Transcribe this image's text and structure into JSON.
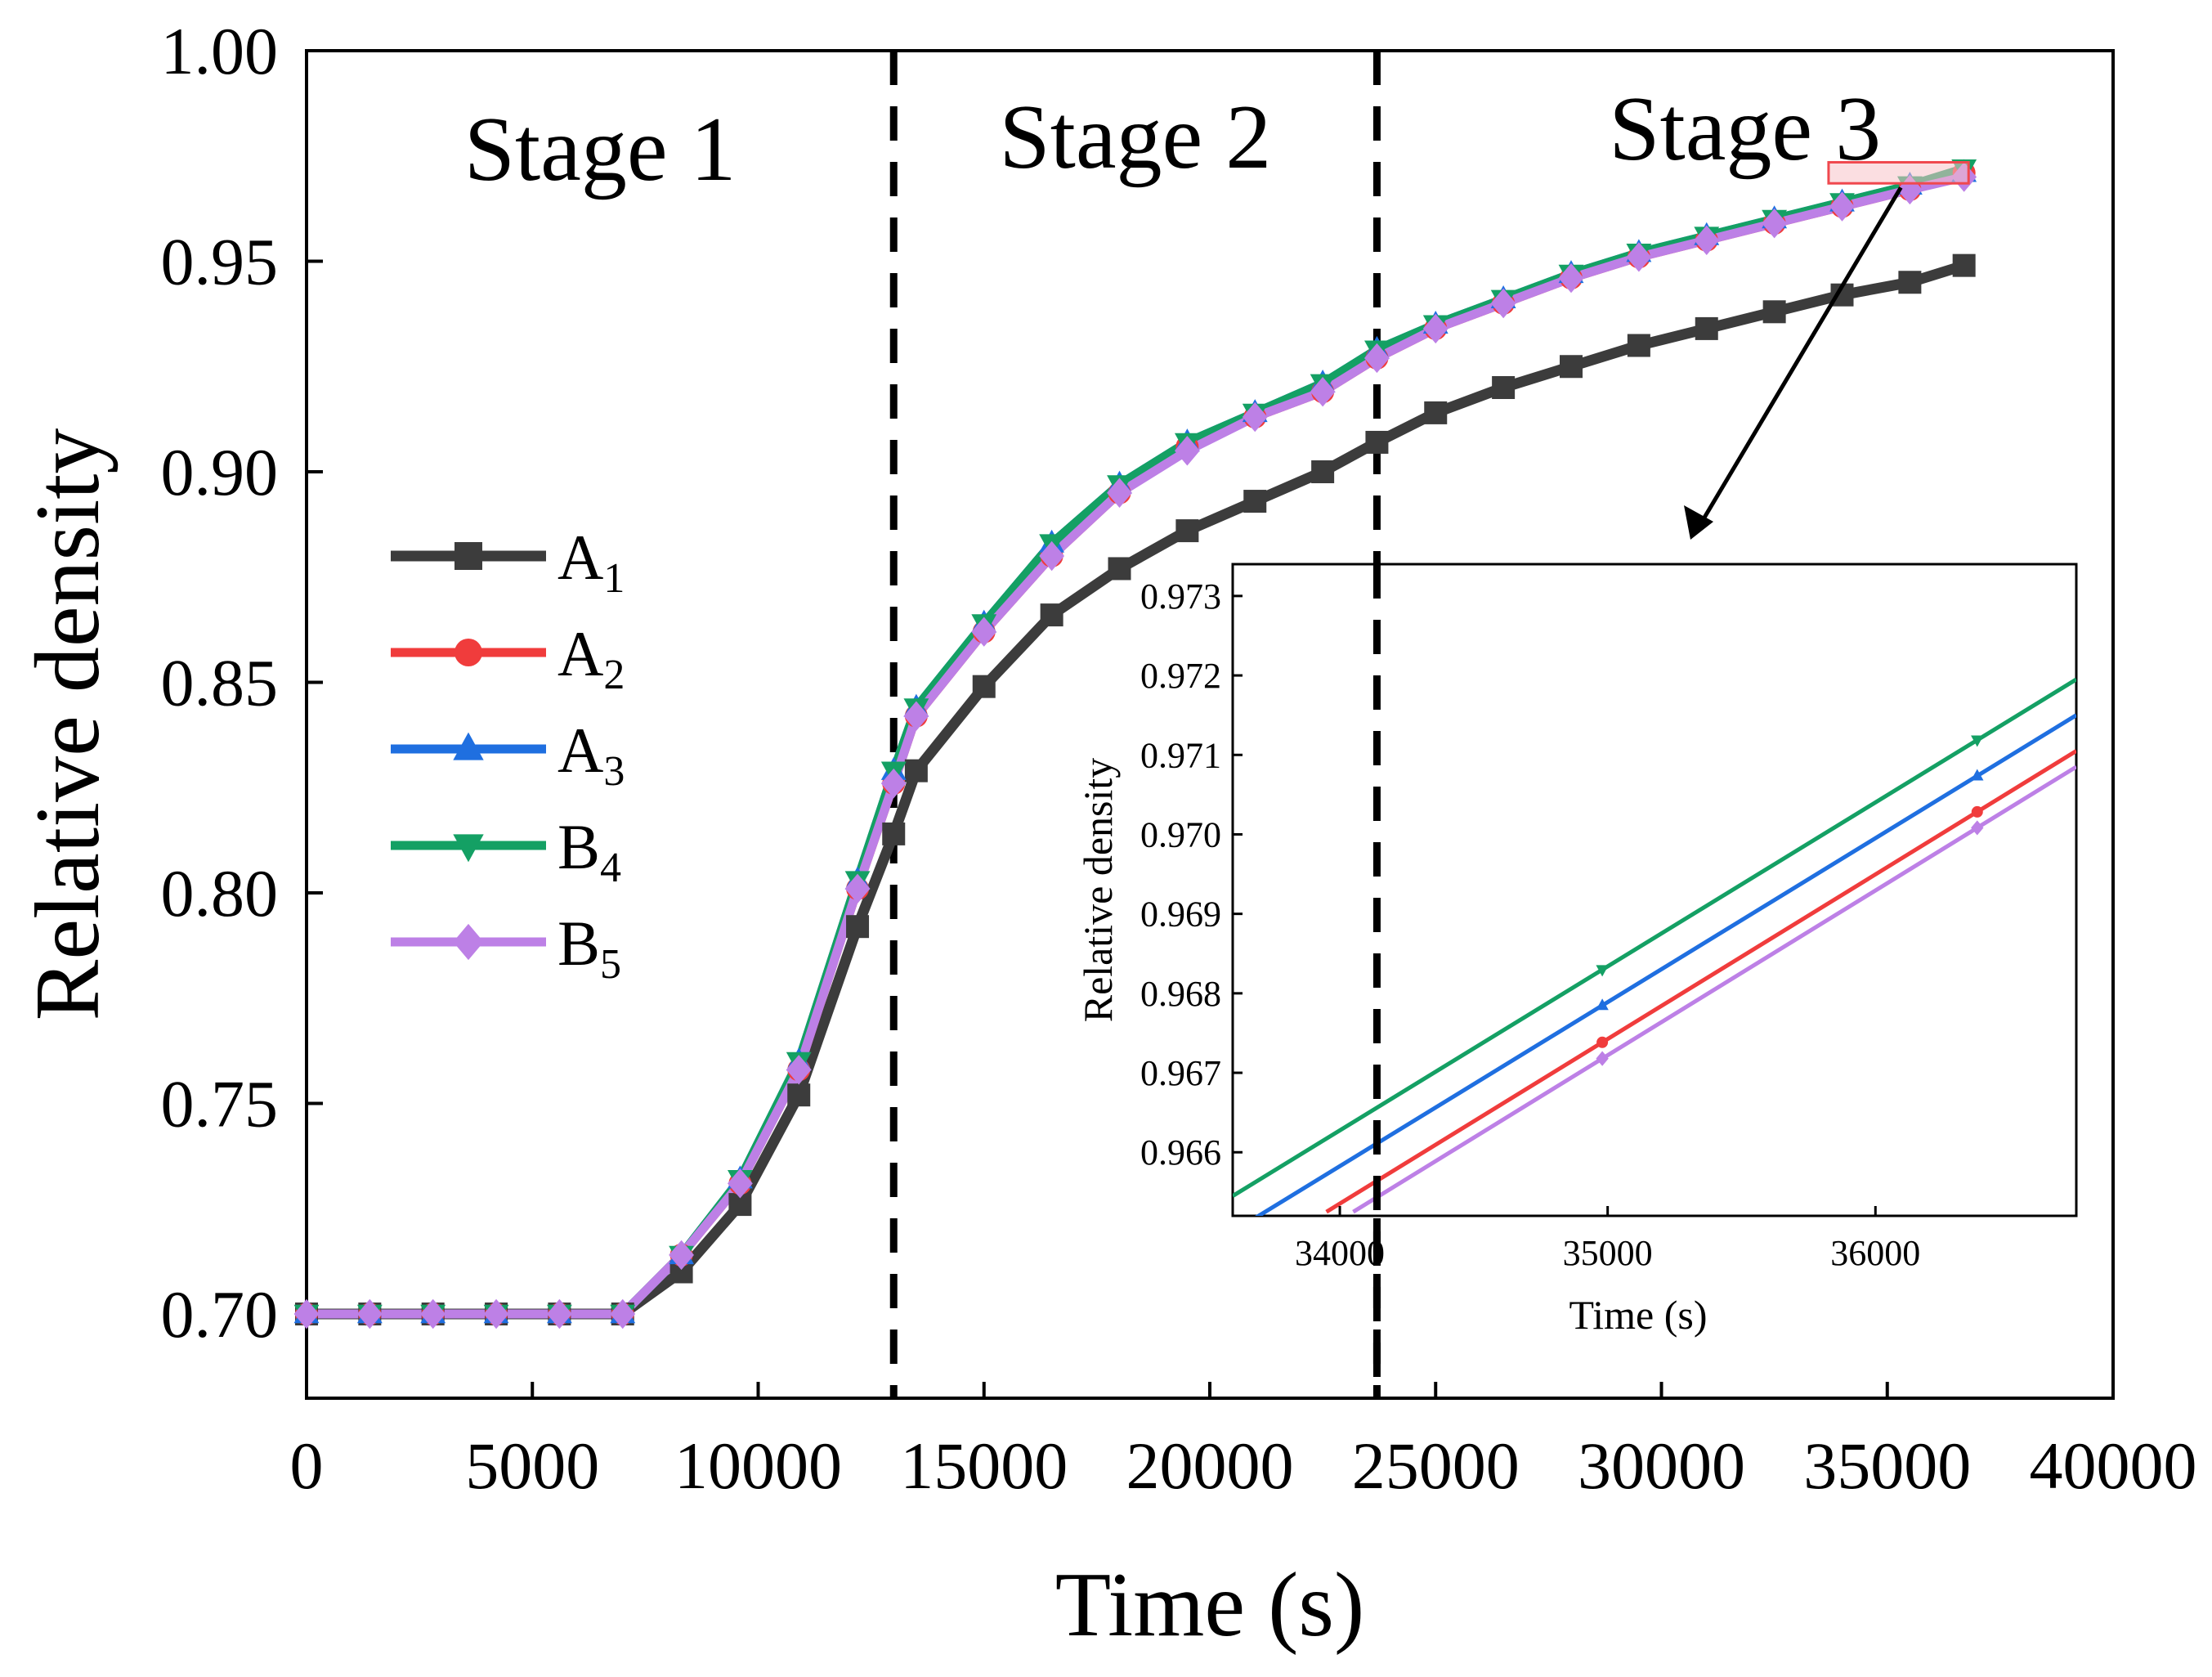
{
  "colors": {
    "A1": "#3c3c3c",
    "A2": "#f03c3c",
    "A3": "#1f6fe0",
    "B4": "#14a064",
    "B5": "#bd80e6",
    "highlight_fill": "#f7c2c8",
    "highlight_stroke": "#f0484e"
  },
  "chart_data": [
    {
      "type": "line",
      "xlabel": "Time (s)",
      "ylabel": "Relative density",
      "xlim": [
        0,
        40000
      ],
      "ylim": [
        0.68,
        1.0
      ],
      "xticks": [
        0,
        5000,
        10000,
        15000,
        20000,
        25000,
        30000,
        35000,
        40000
      ],
      "xtick_labels": [
        "0",
        "5000",
        "10000",
        "15000",
        "20000",
        "25000",
        "30000",
        "35000",
        "40000"
      ],
      "yticks": [
        0.7,
        0.75,
        0.8,
        0.85,
        0.9,
        0.95,
        1.0
      ],
      "ytick_labels": [
        "0.70",
        "0.75",
        "0.80",
        "0.85",
        "0.90",
        "0.95",
        "1.00"
      ],
      "stage_dividers": [
        13000,
        23700
      ],
      "stages": [
        "Stage 1",
        "Stage 2",
        "Stage 3"
      ],
      "legend": [
        {
          "key": "A1",
          "base": "A",
          "sub": "1",
          "marker": "square"
        },
        {
          "key": "A2",
          "base": "A",
          "sub": "2",
          "marker": "circle"
        },
        {
          "key": "A3",
          "base": "A",
          "sub": "3",
          "marker": "triangle-up"
        },
        {
          "key": "B4",
          "base": "B",
          "sub": "4",
          "marker": "triangle-down"
        },
        {
          "key": "B5",
          "base": "B",
          "sub": "5",
          "marker": "diamond"
        }
      ],
      "x": [
        0,
        1400,
        2800,
        4200,
        5600,
        7000,
        8300,
        9600,
        10900,
        12200,
        13000,
        13500,
        15000,
        16500,
        18000,
        19500,
        21000,
        22500,
        23700,
        25000,
        26500,
        28000,
        29500,
        31000,
        32500,
        34000,
        35500,
        36700
      ],
      "series": [
        {
          "name": "A1",
          "values": [
            0.7,
            0.7,
            0.7,
            0.7,
            0.7,
            0.7,
            0.71,
            0.726,
            0.752,
            0.792,
            0.814,
            0.829,
            0.849,
            0.866,
            0.877,
            0.886,
            0.893,
            0.9,
            0.907,
            0.914,
            0.92,
            0.925,
            0.93,
            0.934,
            0.938,
            0.942,
            0.945,
            0.949
          ]
        },
        {
          "name": "A2",
          "values": [
            0.7,
            0.7,
            0.7,
            0.7,
            0.7,
            0.7,
            0.714,
            0.731,
            0.758,
            0.801,
            0.826,
            0.842,
            0.862,
            0.88,
            0.895,
            0.906,
            0.913,
            0.919,
            0.927,
            0.934,
            0.94,
            0.946,
            0.951,
            0.955,
            0.959,
            0.963,
            0.967,
            0.971
          ]
        },
        {
          "name": "A3",
          "values": [
            0.7,
            0.7,
            0.7,
            0.7,
            0.7,
            0.7,
            0.714,
            0.732,
            0.76,
            0.803,
            0.829,
            0.844,
            0.864,
            0.883,
            0.897,
            0.907,
            0.914,
            0.921,
            0.929,
            0.935,
            0.941,
            0.947,
            0.952,
            0.956,
            0.96,
            0.964,
            0.968,
            0.971
          ]
        },
        {
          "name": "B4",
          "values": [
            0.7,
            0.7,
            0.7,
            0.7,
            0.7,
            0.7,
            0.714,
            0.732,
            0.76,
            0.803,
            0.829,
            0.844,
            0.864,
            0.883,
            0.897,
            0.907,
            0.914,
            0.921,
            0.929,
            0.935,
            0.941,
            0.947,
            0.952,
            0.956,
            0.96,
            0.964,
            0.968,
            0.972
          ]
        },
        {
          "name": "B5",
          "values": [
            0.7,
            0.7,
            0.7,
            0.7,
            0.7,
            0.7,
            0.714,
            0.731,
            0.758,
            0.801,
            0.826,
            0.842,
            0.862,
            0.88,
            0.895,
            0.905,
            0.913,
            0.919,
            0.927,
            0.934,
            0.94,
            0.946,
            0.951,
            0.955,
            0.959,
            0.963,
            0.967,
            0.97
          ]
        }
      ],
      "zoom_region": {
        "x": [
          33700,
          36800
        ],
        "y": [
          0.9685,
          0.9735
        ]
      }
    },
    {
      "type": "line",
      "role": "inset",
      "xlabel": "Time (s)",
      "ylabel": "Relative density",
      "xlim": [
        33600,
        36750
      ],
      "ylim": [
        0.9652,
        0.9734
      ],
      "xticks": [
        34000,
        35000,
        36000
      ],
      "xtick_labels": [
        "34000",
        "35000",
        "36000"
      ],
      "yticks": [
        0.966,
        0.967,
        0.968,
        0.969,
        0.97,
        0.971,
        0.972,
        0.973
      ],
      "ytick_labels": [
        "0.966",
        "0.967",
        "0.968",
        "0.969",
        "0.970",
        "0.971",
        "0.972",
        "0.973"
      ],
      "stage_divider": 34200,
      "marker_x": [
        34980,
        36380
      ],
      "series": [
        {
          "name": "A2",
          "x0": 33950,
          "y0": 0.96525,
          "x1": 36750,
          "y1": 0.97105
        },
        {
          "name": "A3",
          "x0": 33600,
          "y0": 0.965,
          "x1": 36750,
          "y1": 0.9715
        },
        {
          "name": "B4",
          "x0": 33600,
          "y0": 0.96545,
          "x1": 36750,
          "y1": 0.97195
        },
        {
          "name": "B5",
          "x0": 34050,
          "y0": 0.96525,
          "x1": 36750,
          "y1": 0.97085
        }
      ]
    }
  ]
}
